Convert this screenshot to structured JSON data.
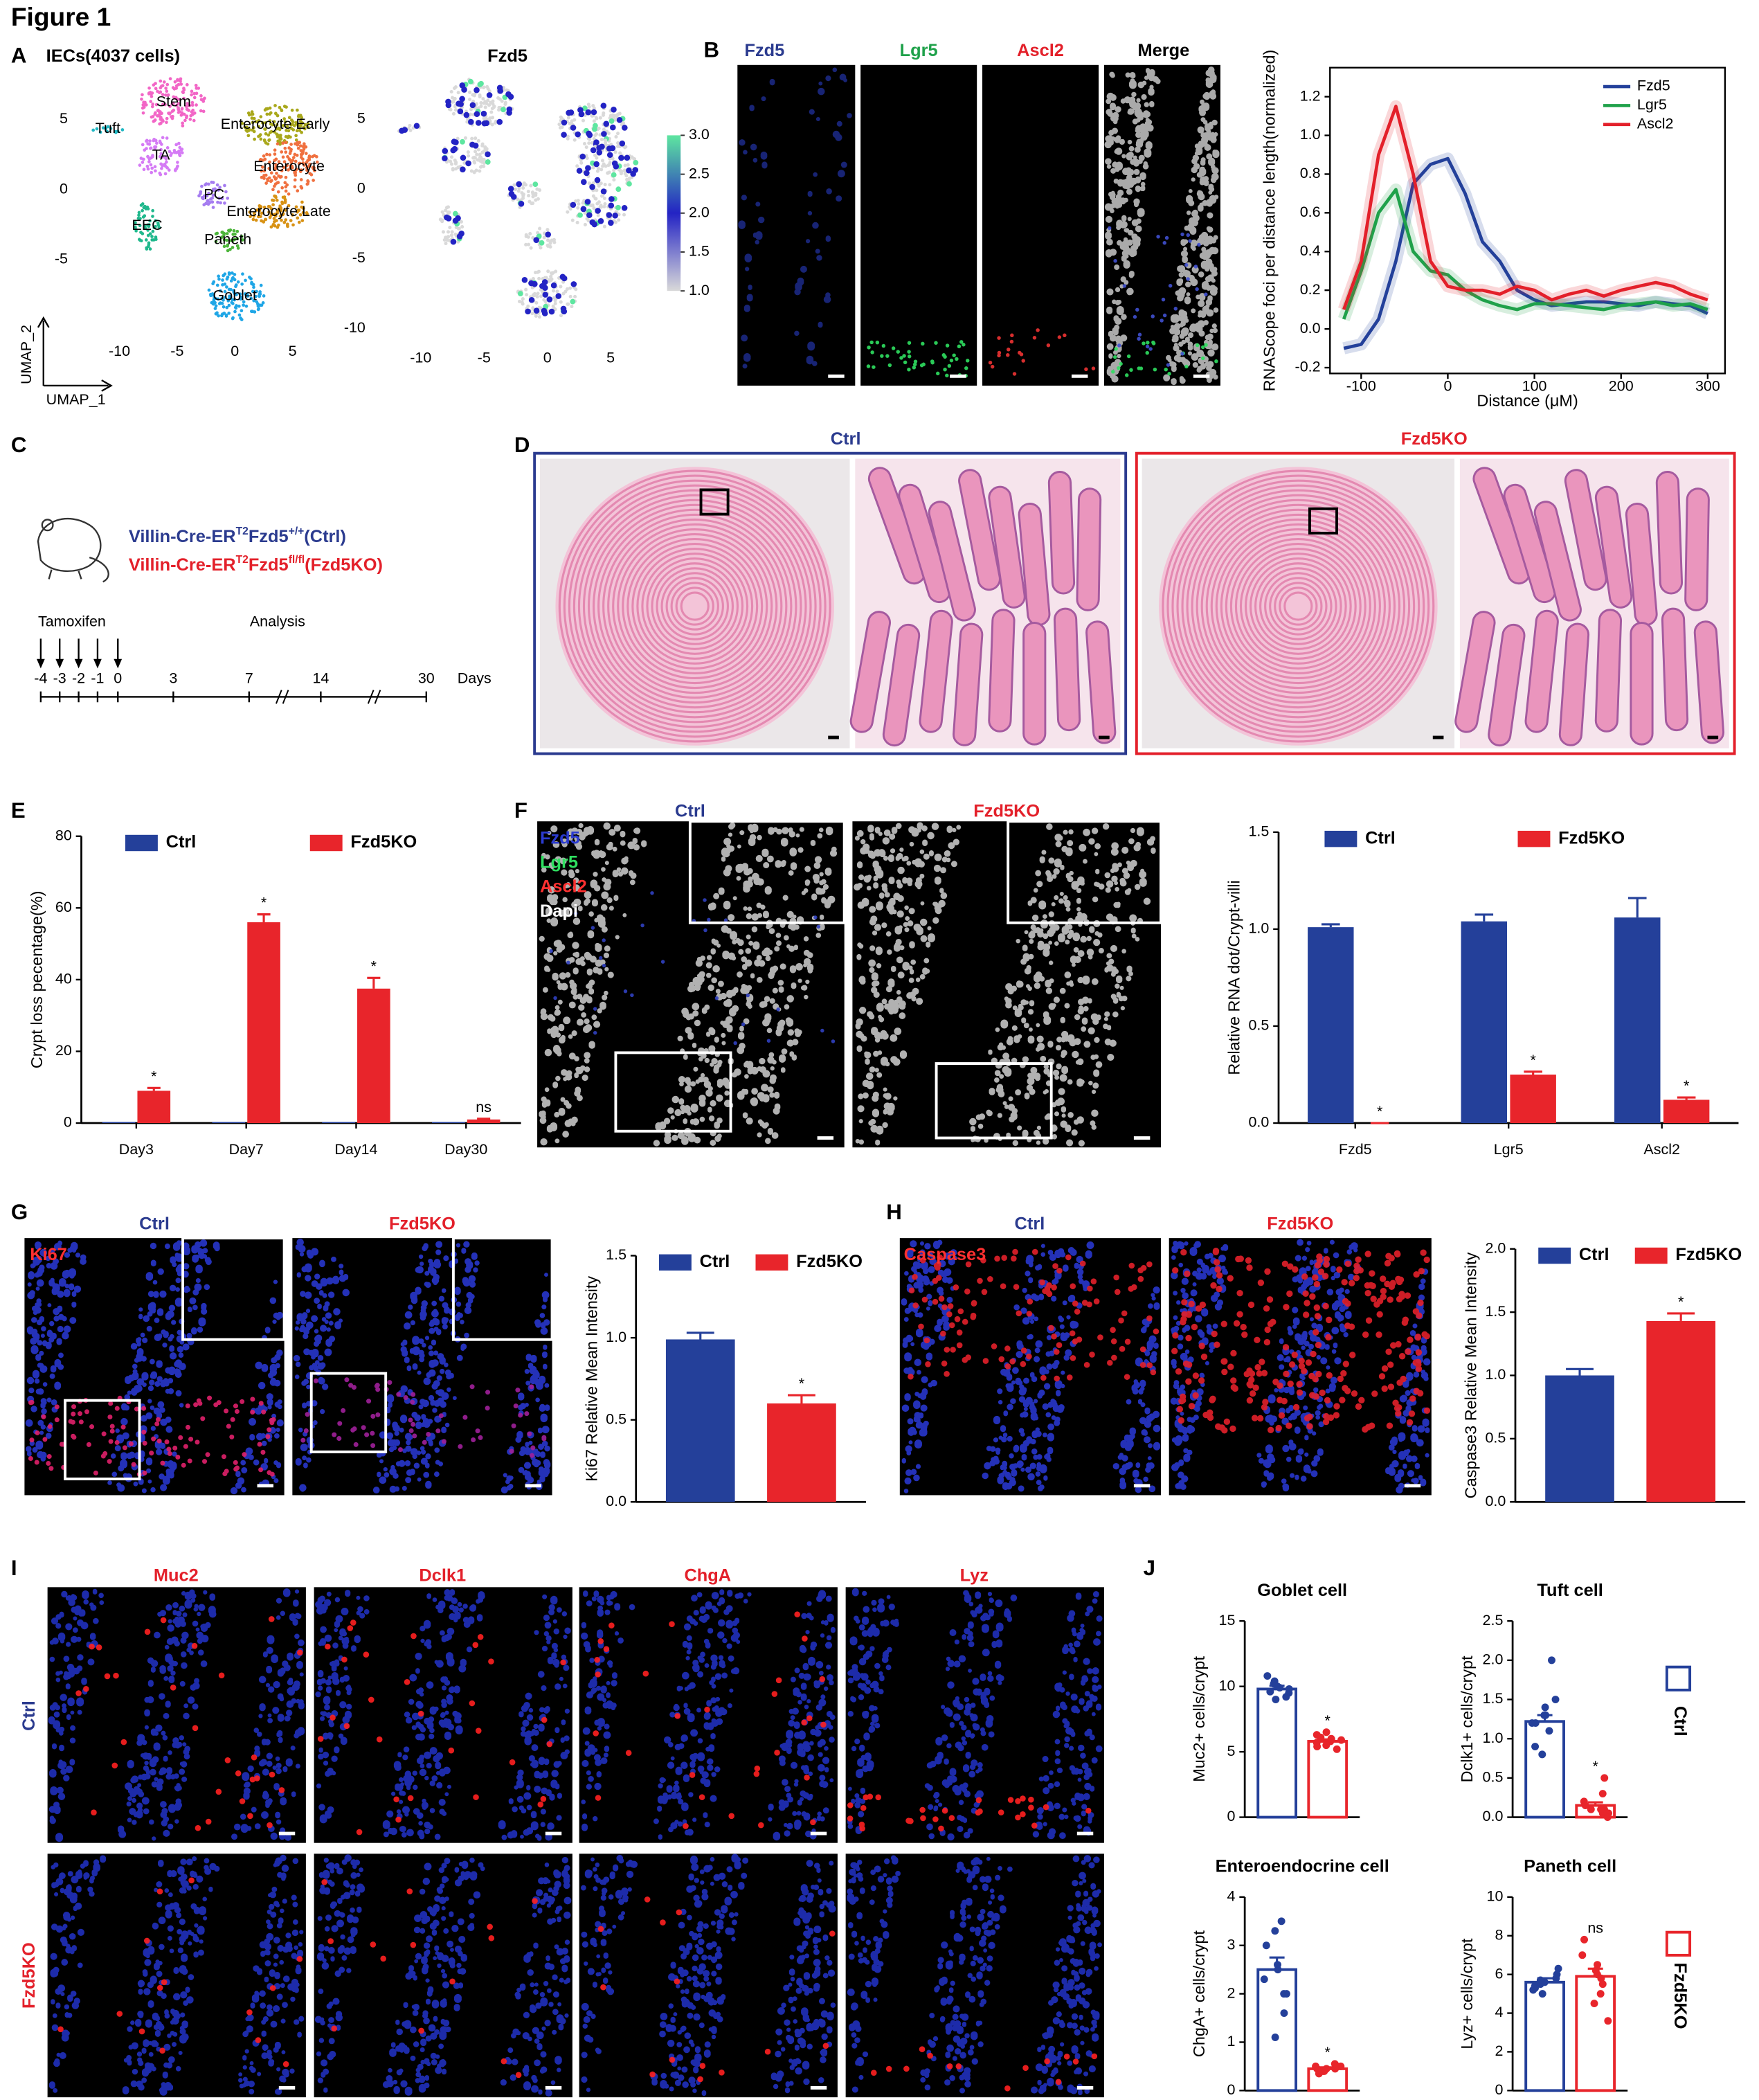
{
  "figure_title": "Figure 1",
  "panel_labels": [
    "A",
    "B",
    "C",
    "D",
    "E",
    "F",
    "G",
    "H",
    "I",
    "J"
  ],
  "panel_b": {
    "channels": [
      "Fzd5",
      "Lgr5",
      "Ascl2",
      "Merge"
    ]
  },
  "panel_c": {
    "lines": [
      {
        "parts": [
          "Villin-Cre-ER",
          "T2",
          "Fzd5",
          "+/+",
          "(Ctrl)"
        ]
      },
      {
        "parts": [
          "Villin-Cre-ER",
          "T2",
          "Fzd5",
          "fl/fl",
          "(Fzd5KO)"
        ]
      }
    ],
    "timeline": {
      "start_label": "Tamoxifen",
      "end_label": "Analysis",
      "ticks": [
        -4,
        -3,
        -2,
        -1,
        0,
        3,
        7,
        14,
        30
      ],
      "unit": "Days"
    }
  },
  "panel_d": {
    "groups": [
      "Ctrl",
      "Fzd5KO"
    ]
  },
  "panel_f": {
    "groups": [
      "Ctrl",
      "Fzd5KO"
    ],
    "channels": [
      "Fzd5",
      "Lgr5",
      "Ascl2",
      "Dapi"
    ]
  },
  "panel_g": {
    "stain": "Ki67",
    "groups": [
      "Ctrl",
      "Fzd5KO"
    ]
  },
  "panel_h": {
    "stain": "Caspase3",
    "groups": [
      "Ctrl",
      "Fzd5KO"
    ]
  },
  "panel_i": {
    "stains": [
      "Muc2",
      "Dclk1",
      "ChgA",
      "Lyz"
    ],
    "groups": [
      "Ctrl",
      "Fzd5KO"
    ]
  },
  "panel_j": {
    "legend": [
      "Ctrl",
      "Fzd5KO"
    ]
  },
  "chart_data": [
    {
      "type": "scatter",
      "title": "IECs(4037 cells)",
      "x_label": "UMAP_1",
      "y_label": "UMAP_2",
      "categories": [
        "Stem",
        "Tuft",
        "Enterocyte Early",
        "TA",
        "Enterocyte",
        "PC",
        "Enterocyte Late",
        "EEC",
        "Paneth",
        "Goblet"
      ],
      "x": [
        -5.3,
        -11.0,
        3.5,
        -6.4,
        4.7,
        -1.8,
        3.8,
        -7.6,
        -0.6,
        0.0
      ],
      "y": [
        6.2,
        4.3,
        4.6,
        2.4,
        1.6,
        -0.4,
        -1.6,
        -2.6,
        -3.6,
        -7.6
      ],
      "colors": [
        "#f266c6",
        "#21b8c4",
        "#a9a81b",
        "#d57bf5",
        "#f0703f",
        "#a57cf0",
        "#d89214",
        "#1fb88c",
        "#4cb53a",
        "#1fa6e6"
      ],
      "xlim": [
        -13.3,
        7.8
      ],
      "ylim": [
        -10.6,
        8.2
      ],
      "xticks": [
        -10,
        -5,
        0,
        5
      ],
      "yticks": [
        -5,
        0,
        5
      ]
    },
    {
      "type": "feature",
      "title": "Fzd5",
      "xlim": [
        -13.3,
        7.0
      ],
      "ylim": [
        -11.2,
        8.2
      ],
      "xticks": [
        -10,
        -5,
        0,
        5
      ],
      "yticks": [
        -10,
        -5,
        0,
        5
      ],
      "clim": [
        1,
        3
      ],
      "cticks": [
        {
          "value": 1,
          "label": "1.0"
        },
        1.5,
        {
          "value": 2,
          "label": "2.0"
        },
        2.5,
        {
          "value": 3,
          "label": "3.0"
        }
      ],
      "colormap": [
        "#d9d9d9",
        "#2323c4",
        "#5ee6a0"
      ]
    },
    {
      "type": "line",
      "y_label": "RNAScope foci per distance length(normalized)",
      "x_label": "Distance (μM)",
      "x": [
        -120,
        -100,
        -80,
        -60,
        -40,
        -20,
        0,
        20,
        40,
        60,
        80,
        100,
        120,
        140,
        160,
        180,
        200,
        220,
        240,
        260,
        280,
        300
      ],
      "series": [
        {
          "name": "Fzd5",
          "color": "#23409a",
          "values": [
            -0.1,
            -0.08,
            0.05,
            0.35,
            0.75,
            0.85,
            0.88,
            0.7,
            0.45,
            0.35,
            0.2,
            0.15,
            0.12,
            0.13,
            0.14,
            0.14,
            0.13,
            0.12,
            0.14,
            0.13,
            0.12,
            0.08
          ]
        },
        {
          "name": "Lgr5",
          "color": "#1fa14a",
          "values": [
            0.05,
            0.3,
            0.6,
            0.72,
            0.4,
            0.3,
            0.28,
            0.2,
            0.15,
            0.12,
            0.1,
            0.13,
            0.13,
            0.12,
            0.11,
            0.1,
            0.12,
            0.13,
            0.14,
            0.12,
            0.13,
            0.1
          ]
        },
        {
          "name": "Ascl2",
          "color": "#e3202a",
          "values": [
            0.1,
            0.35,
            0.9,
            1.15,
            0.8,
            0.35,
            0.22,
            0.2,
            0.2,
            0.18,
            0.22,
            0.2,
            0.15,
            0.18,
            0.2,
            0.17,
            0.2,
            0.22,
            0.24,
            0.22,
            0.18,
            0.15
          ]
        }
      ],
      "xlim": [
        -136,
        320
      ],
      "ylim": [
        -0.23,
        1.35
      ],
      "xticks": [
        -100,
        0,
        100,
        200,
        300
      ],
      "yticks": [
        -0.2,
        {
          "value": 0,
          "label": "0.0"
        },
        0.2,
        0.4,
        0.6,
        0.8,
        {
          "value": 1,
          "label": "1.0"
        },
        1.2
      ],
      "legend": "upper right"
    },
    {
      "type": "bar",
      "y_label": "Crypt loss pecentage(%)",
      "categories": [
        "Day3",
        "Day7",
        "Day14",
        "Day30"
      ],
      "series": [
        {
          "name": "Ctrl",
          "color": "#24409a",
          "values": [
            0.3,
            0.3,
            0.3,
            0.3
          ]
        },
        {
          "name": "Fzd5KO",
          "color": "#e8252b",
          "values": [
            9,
            56,
            37.5,
            1
          ],
          "errors": [
            0.8,
            2.2,
            3,
            0.2
          ]
        }
      ],
      "annotations": [
        "*",
        "*",
        "*",
        "ns"
      ],
      "ylim": [
        0,
        80
      ],
      "yticks": [
        0,
        20,
        40,
        60,
        80
      ],
      "legend": "top"
    },
    {
      "type": "bar",
      "y_label": "Relative RNA dot/Crypt-villi",
      "categories": [
        "Fzd5",
        "Lgr5",
        "Ascl2"
      ],
      "series": [
        {
          "name": "Ctrl",
          "color": "#24409a",
          "values": [
            1.01,
            1.04,
            1.06
          ],
          "errors": [
            0.015,
            0.035,
            0.1
          ]
        },
        {
          "name": "Fzd5KO",
          "color": "#e8252b",
          "values": [
            0,
            0.25,
            0.12
          ],
          "errors": [
            0,
            0.015,
            0.012
          ]
        }
      ],
      "annotations": [
        "*",
        "*",
        "*"
      ],
      "ylim": [
        0,
        1.5
      ],
      "yticks": [
        {
          "value": 0,
          "label": "0.0"
        },
        0.5,
        {
          "value": 1,
          "label": "1.0"
        },
        1.5
      ],
      "legend": "top"
    },
    {
      "type": "bar",
      "y_label": "Ki67 Relative Mean Intensity",
      "categories": [
        null
      ],
      "series": [
        {
          "name": "Ctrl",
          "color": "#24409a",
          "values": [
            0.99
          ],
          "errors": [
            0.04
          ]
        },
        {
          "name": "Fzd5KO",
          "color": "#e8252b",
          "values": [
            0.6
          ],
          "errors": [
            0.05
          ]
        }
      ],
      "annotations": [
        "*"
      ],
      "ylim": [
        0,
        1.5
      ],
      "yticks": [
        {
          "value": 0,
          "label": "0.0"
        },
        0.5,
        {
          "value": 1,
          "label": "1.0"
        },
        1.5
      ],
      "legend": "top"
    },
    {
      "type": "bar",
      "y_label": "Caspase3 Relative Mean Intensity",
      "categories": [
        null
      ],
      "series": [
        {
          "name": "Ctrl",
          "color": "#24409a",
          "values": [
            1.0
          ],
          "errors": [
            0.05
          ]
        },
        {
          "name": "Fzd5KO",
          "color": "#e8252b",
          "values": [
            1.43
          ],
          "errors": [
            0.06
          ]
        }
      ],
      "annotations": [
        "*"
      ],
      "ylim": [
        0,
        2
      ],
      "yticks": [
        {
          "value": 0,
          "label": "0.0"
        },
        0.5,
        {
          "value": 1,
          "label": "1.0"
        },
        1.5,
        {
          "value": 2,
          "label": "2.0"
        }
      ],
      "legend": "top"
    },
    {
      "type": "dotbar",
      "title": "Goblet cell",
      "y_label": "Muc2+ cells/crypt",
      "categories": [
        null
      ],
      "series": [
        {
          "color": "#24409a",
          "values": [
            9.8
          ],
          "errors": [
            0.25
          ],
          "points": [
            10.2,
            9.5,
            9.8,
            10.8,
            9.2,
            9.9,
            10.0,
            9.6,
            10.4,
            9.0
          ]
        },
        {
          "color": "#e8252b",
          "values": [
            5.8
          ],
          "errors": [
            0.15
          ],
          "points": [
            5.8,
            6.3,
            5.5,
            6.0,
            5.2,
            6.1,
            5.7,
            5.9,
            5.4,
            6.5
          ]
        }
      ],
      "annotations": [
        "*"
      ],
      "ylim": [
        0,
        15
      ],
      "yticks": [
        0,
        5,
        10,
        15
      ]
    },
    {
      "type": "dotbar",
      "title": "Tuft cell",
      "y_label": "Dclk1+ cells/crypt",
      "categories": [
        null
      ],
      "series": [
        {
          "color": "#24409a",
          "values": [
            1.22
          ],
          "errors": [
            0.08
          ],
          "points": [
            2.0,
            1.5,
            1.4,
            1.3,
            1.2,
            1.2,
            1.1,
            0.9,
            0.8,
            1.3
          ]
        },
        {
          "color": "#e8252b",
          "values": [
            0.15
          ],
          "errors": [
            0.04
          ],
          "points": [
            0.5,
            0.3,
            0.2,
            0.15,
            0.1,
            0.1,
            0.05,
            0.05,
            0.0,
            0.1
          ]
        }
      ],
      "annotations": [
        "*"
      ],
      "ylim": [
        0,
        2.5
      ],
      "yticks": [
        {
          "value": 0,
          "label": "0.0"
        },
        0.5,
        {
          "value": 1,
          "label": "1.0"
        },
        1.5,
        {
          "value": 2,
          "label": "2.0"
        },
        2.5
      ]
    },
    {
      "type": "dotbar",
      "title": "Enteroendocrine cell",
      "y_label": "ChgA+ cells/crypt",
      "categories": [
        null
      ],
      "series": [
        {
          "color": "#24409a",
          "values": [
            2.5
          ],
          "errors": [
            0.25
          ],
          "points": [
            3.5,
            3.3,
            3.0,
            2.6,
            2.5,
            2.3,
            2.0,
            2.0,
            1.6,
            1.1
          ]
        },
        {
          "color": "#e8252b",
          "values": [
            0.45
          ],
          "errors": [
            0.03
          ],
          "points": [
            0.55,
            0.5,
            0.45,
            0.45,
            0.4,
            0.4,
            0.5,
            0.45,
            0.35,
            0.5
          ]
        }
      ],
      "annotations": [
        "*"
      ],
      "ylim": [
        0,
        4
      ],
      "yticks": [
        0,
        1,
        2,
        3,
        4
      ]
    },
    {
      "type": "dotbar",
      "title": "Paneth cell",
      "y_label": "Lyz+ cells/crypt",
      "categories": [
        null
      ],
      "series": [
        {
          "color": "#24409a",
          "values": [
            5.6
          ],
          "errors": [
            0.2
          ],
          "points": [
            6.3,
            6.0,
            5.8,
            5.7,
            5.6,
            5.5,
            5.4,
            5.3,
            5.0,
            5.2
          ]
        },
        {
          "color": "#e8252b",
          "values": [
            5.9
          ],
          "errors": [
            0.4
          ],
          "points": [
            7.8,
            7.0,
            6.5,
            6.2,
            6.0,
            5.8,
            5.5,
            5.0,
            4.5,
            3.6
          ]
        }
      ],
      "annotations": [
        "ns"
      ],
      "ylim": [
        0,
        10
      ],
      "yticks": [
        0,
        2,
        4,
        6,
        8,
        10
      ]
    }
  ]
}
